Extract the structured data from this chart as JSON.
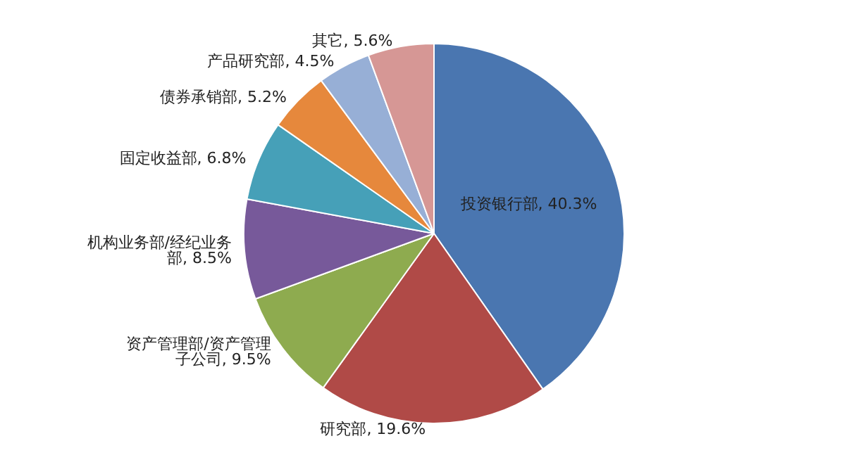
{
  "chart_data": {
    "type": "pie",
    "categories": [
      "投资银行部",
      "研究部",
      "资产管理部/资产管理子公司",
      "机构业务部/经纪业务部",
      "固定收益部",
      "债券承销部",
      "产品研究部",
      "其它"
    ],
    "values": [
      40.3,
      19.6,
      9.5,
      8.5,
      6.8,
      5.2,
      4.5,
      5.6
    ],
    "value_labels": [
      "40.3%",
      "19.6%",
      "9.5%",
      "8.5%",
      "6.8%",
      "5.2%",
      "4.5%",
      "5.6%"
    ],
    "colors": [
      "#4a76b0",
      "#b04a47",
      "#8eab4f",
      "#77599a",
      "#46a0b8",
      "#e6883c",
      "#97afd6",
      "#d69795"
    ],
    "legend": false
  }
}
